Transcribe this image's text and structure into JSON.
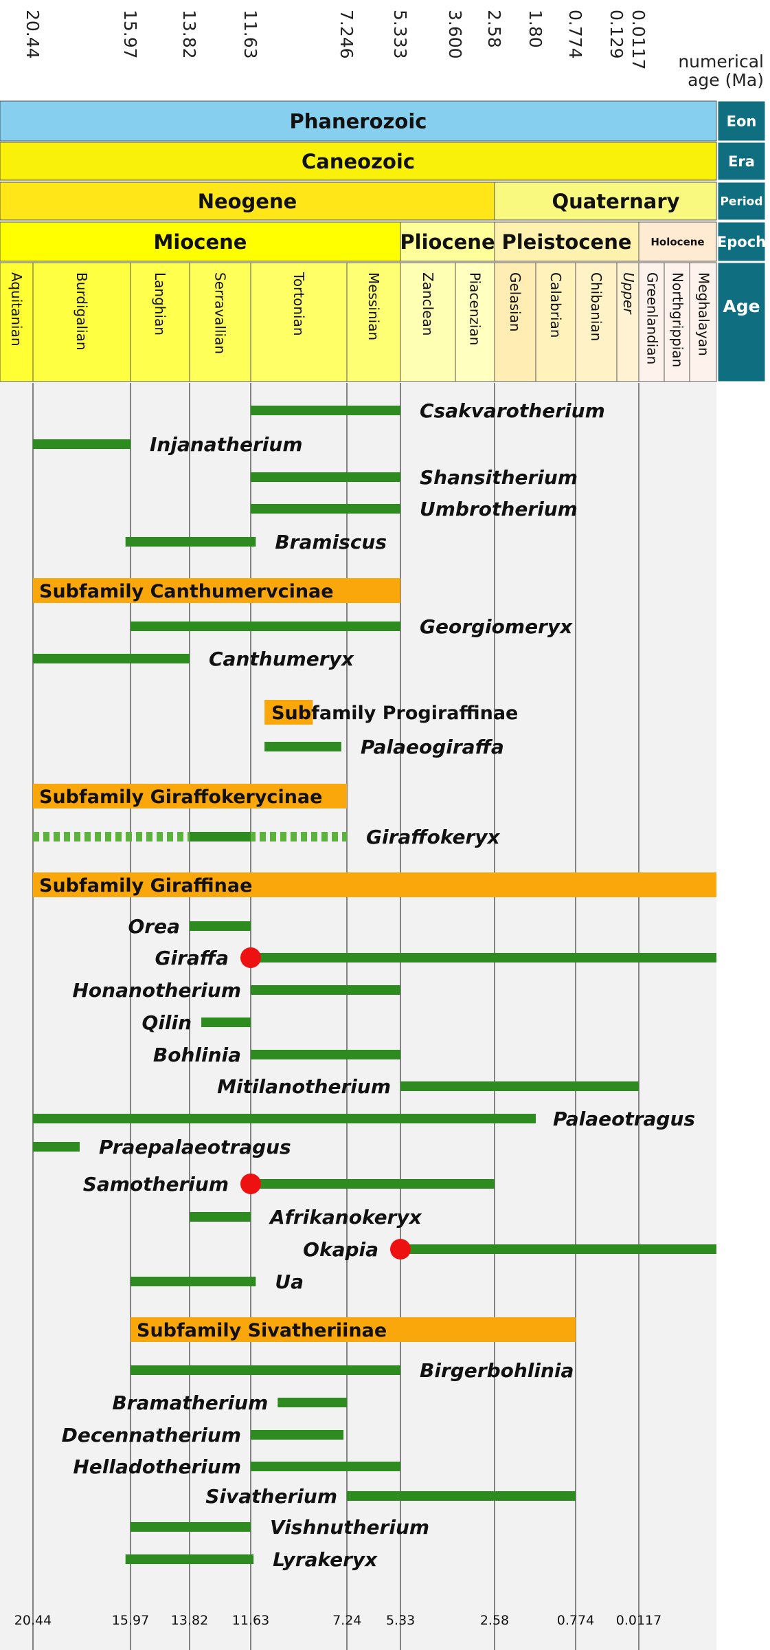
{
  "chart_data": {
    "type": "bar",
    "x_axis_label": "numerical age (Ma)",
    "ticks_top": [
      "20.44",
      "15.97",
      "13.82",
      "11.63",
      "7.246",
      "5.333",
      "3.600",
      "2.58",
      "1.80",
      "0.774",
      "0.129",
      "0.0117"
    ],
    "ticks_bottom": [
      "20.44",
      "15.97",
      "13.82",
      "11.63",
      "7.24",
      "5.33",
      "2.58",
      "0.774",
      "0.0117"
    ],
    "header_rows": [
      {
        "label": "Eon",
        "units": [
          {
            "name": "Phanerozoic",
            "start": 23.03,
            "end": 0,
            "color": "#86cfee"
          }
        ]
      },
      {
        "label": "Era",
        "units": [
          {
            "name": "Caneozoic",
            "start": 23.03,
            "end": 0,
            "color": "#f9f10a"
          }
        ]
      },
      {
        "label": "Period",
        "units": [
          {
            "name": "Neogene",
            "start": 23.03,
            "end": 2.58,
            "color": "#ffe619"
          },
          {
            "name": "Quaternary",
            "start": 2.58,
            "end": 0,
            "color": "#f9f97f"
          }
        ]
      },
      {
        "label": "Epoch",
        "units": [
          {
            "name": "Miocene",
            "start": 23.03,
            "end": 5.333,
            "color": "#ffff00"
          },
          {
            "name": "Pliocene",
            "start": 5.333,
            "end": 2.58,
            "color": "#ffff99"
          },
          {
            "name": "Pleistocene",
            "start": 2.58,
            "end": 0.0117,
            "color": "#fff2ae"
          },
          {
            "name": "Holocene",
            "start": 0.0117,
            "end": 0,
            "color": "#feebd2"
          }
        ]
      },
      {
        "label": "Age",
        "units": [
          {
            "name": "Aquitanian",
            "start": 23.03,
            "end": 20.44,
            "color": "#ffff33"
          },
          {
            "name": "Burdigalian",
            "start": 20.44,
            "end": 15.97,
            "color": "#ffff41"
          },
          {
            "name": "Langhian",
            "start": 15.97,
            "end": 13.82,
            "color": "#ffff4d"
          },
          {
            "name": "Serravallian",
            "start": 13.82,
            "end": 11.63,
            "color": "#ffff59"
          },
          {
            "name": "Tortonian",
            "start": 11.63,
            "end": 7.246,
            "color": "#ffff66"
          },
          {
            "name": "Messinian",
            "start": 7.246,
            "end": 5.333,
            "color": "#ffff73"
          },
          {
            "name": "Zanclean",
            "start": 5.333,
            "end": 3.6,
            "color": "#ffffb3"
          },
          {
            "name": "Piacenzian",
            "start": 3.6,
            "end": 2.58,
            "color": "#ffffbf"
          },
          {
            "name": "Gelasian",
            "start": 2.58,
            "end": 1.8,
            "color": "#ffedb3"
          },
          {
            "name": "Calabrian",
            "start": 1.8,
            "end": 0.774,
            "color": "#fff2ba"
          },
          {
            "name": "Chibanian",
            "start": 0.774,
            "end": 0.129,
            "color": "#fff2c7"
          },
          {
            "name": "Upper",
            "start": 0.129,
            "end": 0.0117,
            "color": "#fff2d3"
          },
          {
            "name": "Greenlandian",
            "start": 0.0117,
            "end": 0.0082,
            "color": "#fef2ec"
          },
          {
            "name": "Northgrippian",
            "start": 0.0082,
            "end": 0.0042,
            "color": "#fef2ec"
          },
          {
            "name": "Meghalayan",
            "start": 0.0042,
            "end": 0,
            "color": "#fef2ec"
          }
        ]
      }
    ],
    "series": [
      {
        "name": "Csakvarotherium",
        "start": 11.63,
        "end": 5.333,
        "label_side": "right"
      },
      {
        "name": "Injanatherium",
        "start": 20.44,
        "end": 15.97,
        "label_side": "right"
      },
      {
        "name": "Shansitherium",
        "start": 11.63,
        "end": 5.333,
        "label_side": "right"
      },
      {
        "name": "Umbrotherium",
        "start": 11.63,
        "end": 5.333,
        "label_side": "right"
      },
      {
        "name": "Bramiscus",
        "start": 16.2,
        "end": 11.4,
        "label_side": "right"
      },
      {
        "subfamily": "Subfamily Canthumervcinae",
        "start": 20.44,
        "end": 5.333
      },
      {
        "name": "Georgiomeryx",
        "start": 15.97,
        "end": 5.333,
        "label_side": "right"
      },
      {
        "name": "Canthumeryx",
        "start": 20.44,
        "end": 13.82,
        "label_side": "right"
      },
      {
        "subfamily": "Subfamily Progiraffinae",
        "start": 11.0,
        "end": 8.8,
        "label_side": "right"
      },
      {
        "name": "Palaeogiraffa",
        "start": 11.0,
        "end": 7.5,
        "label_side": "right"
      },
      {
        "subfamily": "Subfamily Giraffokerycinae",
        "start": 20.44,
        "end": 7.246
      },
      {
        "name": "Giraffokeryx",
        "start": 20.44,
        "end": 7.246,
        "solid_start": 13.82,
        "solid_end": 11.63,
        "dashed": true,
        "label_side": "right"
      },
      {
        "subfamily": "Subfamily Giraffinae",
        "start": 20.44,
        "end": 0
      },
      {
        "name": "Orea",
        "start": 13.82,
        "end": 11.63,
        "label_side": "left"
      },
      {
        "name": "Giraffa",
        "start": 11.63,
        "end": 0,
        "origin": true,
        "label_side": "left"
      },
      {
        "name": "Honanotherium",
        "start": 11.63,
        "end": 5.333,
        "label_side": "left"
      },
      {
        "name": "Qilin",
        "start": 13.4,
        "end": 11.63,
        "label_side": "left"
      },
      {
        "name": "Bohlinia",
        "start": 11.63,
        "end": 5.333,
        "label_side": "left"
      },
      {
        "name": "Mitilanotherium",
        "start": 5.333,
        "end": 0.0117,
        "label_side": "left"
      },
      {
        "name": "Palaeotragus",
        "start": 20.44,
        "end": 1.8,
        "label_side": "right"
      },
      {
        "name": "Praepalaeotragus",
        "start": 20.44,
        "end": 18.3,
        "label_side": "right"
      },
      {
        "name": "Samotherium",
        "start": 11.63,
        "end": 2.58,
        "origin": true,
        "label_side": "left"
      },
      {
        "name": "Afrikanokeryx",
        "start": 13.82,
        "end": 11.63,
        "label_side": "right"
      },
      {
        "name": "Okapia",
        "start": 5.333,
        "end": 0,
        "origin": true,
        "label_side": "left"
      },
      {
        "name": "Ua",
        "start": 15.97,
        "end": 11.4,
        "label_side": "right"
      },
      {
        "subfamily": "Subfamily Sivatheriinae",
        "start": 15.97,
        "end": 0.774
      },
      {
        "name": "Birgerbohlinia",
        "start": 15.97,
        "end": 5.333,
        "label_side": "right"
      },
      {
        "name": "Bramatherium",
        "start": 10.4,
        "end": 7.246,
        "label_side": "left"
      },
      {
        "name": "Decennatherium",
        "start": 11.63,
        "end": 7.4,
        "label_side": "left"
      },
      {
        "name": "Helladotherium",
        "start": 11.63,
        "end": 5.333,
        "label_side": "left"
      },
      {
        "name": "Sivatherium",
        "start": 7.246,
        "end": 0.774,
        "label_side": "left"
      },
      {
        "name": "Vishnutherium",
        "start": 15.97,
        "end": 11.63,
        "label_side": "right"
      },
      {
        "name": "Lyrakeryx",
        "start": 16.2,
        "end": 11.5,
        "label_side": "right"
      }
    ]
  },
  "colors": {
    "range": "#2e8b1f",
    "origin": "#ee1111",
    "subfamily": "#f9a70b",
    "sidebar": "#0f6f80",
    "plot_bg": "#f2f2f2"
  },
  "axis": {
    "x_label_line1": "numerical",
    "x_label_line2": "age (Ma)"
  }
}
